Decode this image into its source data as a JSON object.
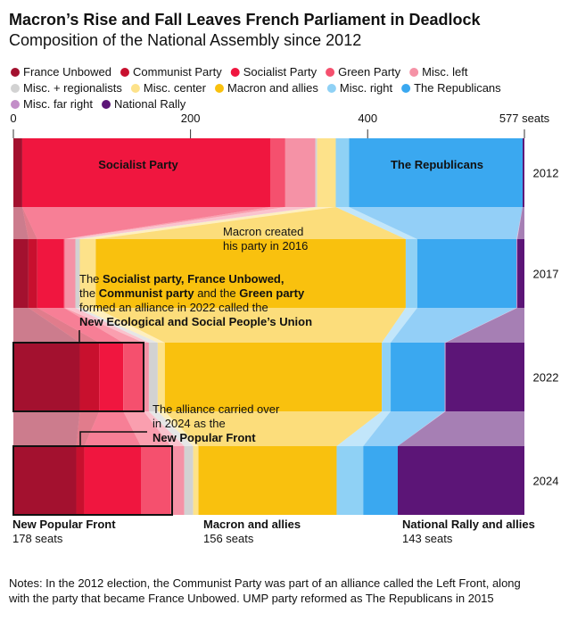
{
  "chart_data": {
    "type": "sankey-bar",
    "title": "Macron’s Rise and Fall Leaves French Parliament in Deadlock",
    "subtitle": "Composition of the National Assembly since 2012",
    "categories": [
      "2012",
      "2017",
      "2022",
      "2024"
    ],
    "xlim": [
      0,
      577
    ],
    "xticks": [
      0,
      200,
      400,
      {
        "value": 577,
        "label": "577 seats"
      }
    ],
    "series": [
      {
        "name": "France Unbowed",
        "color": "#a3112f",
        "values": [
          10,
          17,
          75,
          71
        ]
      },
      {
        "name": "Communist Party",
        "color": "#c8102e",
        "values": [
          0,
          10,
          22,
          9
        ]
      },
      {
        "name": "Socialist Party",
        "color": "#f0163f",
        "values": [
          280,
          30,
          27,
          64
        ]
      },
      {
        "name": "Green Party",
        "color": "#f5506e",
        "values": [
          17,
          1,
          23,
          34
        ]
      },
      {
        "name": "Misc. left",
        "color": "#f592a6",
        "values": [
          34,
          12,
          6,
          15
        ]
      },
      {
        "name": "Misc. + regionalists",
        "color": "#d2d2d2",
        "values": [
          2,
          5,
          10,
          10
        ]
      },
      {
        "name": "Misc. center",
        "color": "#fde28a",
        "values": [
          21,
          18,
          8,
          6
        ]
      },
      {
        "name": "Macron and allies",
        "color": "#f9c10e",
        "values": [
          0,
          350,
          245,
          156
        ]
      },
      {
        "name": "Misc. right",
        "color": "#8fd1f5",
        "values": [
          15,
          13,
          10,
          30
        ]
      },
      {
        "name": "The Republicans",
        "color": "#3aa8f0",
        "values": [
          196,
          112,
          61,
          39
        ]
      },
      {
        "name": "Misc. far right",
        "color": "#c38ec8",
        "values": [
          0,
          1,
          1,
          0
        ]
      },
      {
        "name": "National Rally",
        "color": "#5c1577",
        "values": [
          2,
          8,
          89,
          143
        ]
      }
    ],
    "bar_labels": [
      "Socialist Party",
      "The Republicans"
    ],
    "note_2017": [
      "Macron created",
      "his party in 2016"
    ],
    "note_2022": [
      [
        "The ",
        "Socialist party, France Unbowed,"
      ],
      [
        "the ",
        "Communist party",
        " and the ",
        "Green party"
      ],
      [
        "formed an alliance in 2022 called the"
      ],
      [
        "New Ecological and Social People’s Union"
      ]
    ],
    "note_2024": [
      "The alliance carried over",
      "in 2024 as the",
      "New Popular Front"
    ],
    "group_labels": [
      [
        "New Popular Front",
        "178 seats"
      ],
      [
        "Macron and allies",
        "156 seats"
      ],
      [
        "National Rally and allies",
        "143 seats"
      ]
    ],
    "notes": [
      "Notes: In the 2012 election, the Communist Party was part of an alliance called the Left Front, along",
      "with the party that became France Unbowed. UMP party reformed as The Republicans in 2015"
    ]
  }
}
